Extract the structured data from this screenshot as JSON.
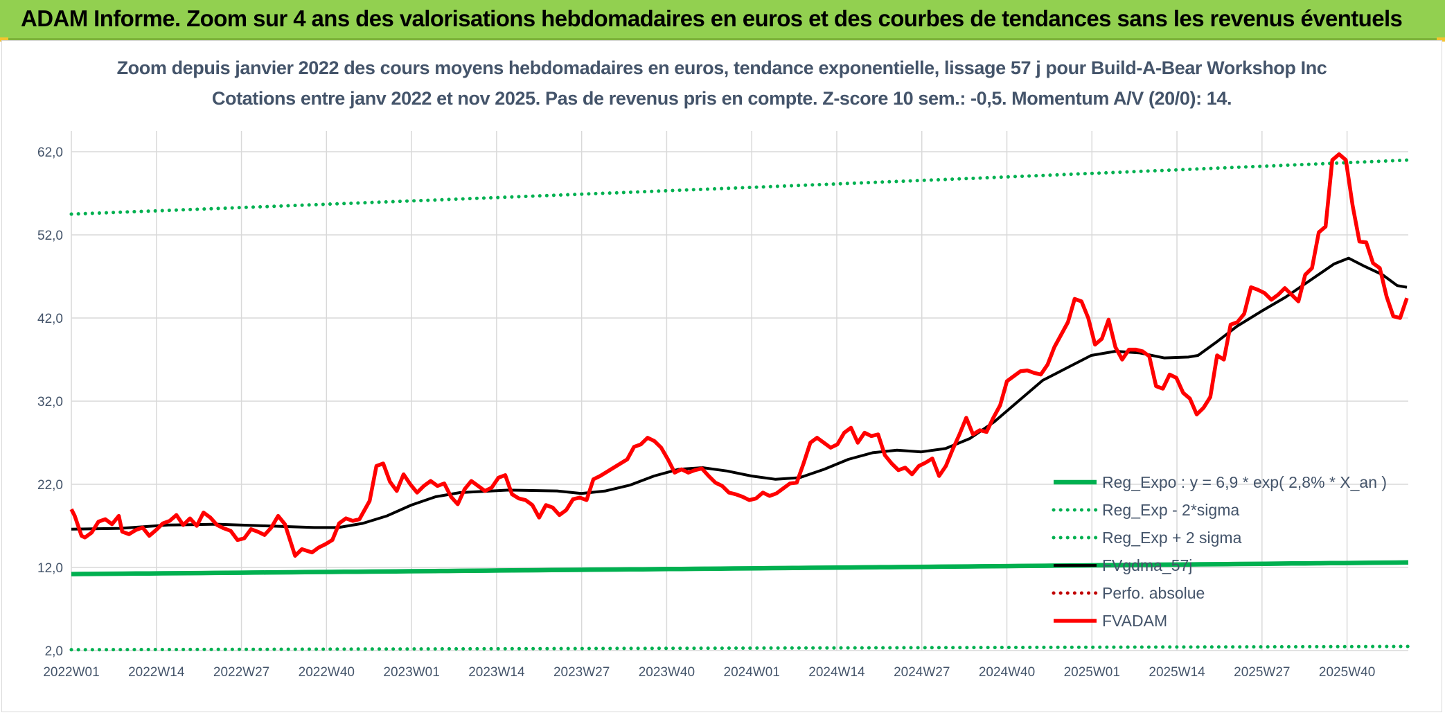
{
  "banner": {
    "text": "ADAM Informe. Zoom sur 4 ans des valorisations hebdomadaires en euros et des courbes de tendances sans les revenus éventuels"
  },
  "colors": {
    "banner_bg": "#92d050",
    "reg_expo": "#00b050",
    "sigma_lines": "#00b050",
    "fvgdma": "#000000",
    "perfo": "#c00000",
    "fvadam": "#ff0000",
    "grid": "#d9d9d9",
    "text": "#44546a"
  },
  "chart_data": {
    "type": "line",
    "title": [
      "Zoom depuis janvier 2022 des cours moyens hebdomadaires en euros, tendance exponentielle, lissage 57 j pour Build-A-Bear Workshop Inc",
      "Cotations entre janv 2022 et nov 2025. Pas de revenus pris en compte. Z-score 10 sem.: -0,5. Momentum A/V (20/0): 14."
    ],
    "xlabel": "",
    "ylabel": "",
    "ylim": [
      2,
      62
    ],
    "yticks": [
      "2,0",
      "12,0",
      "22,0",
      "32,0",
      "42,0",
      "52,0",
      "62,0"
    ],
    "ytick_values": [
      2,
      12,
      22,
      32,
      42,
      52,
      62
    ],
    "xticks": [
      "2022W01",
      "2022W14",
      "2022W27",
      "2022W40",
      "2023W01",
      "2023W14",
      "2023W27",
      "2023W40",
      "2024W01",
      "2024W14",
      "2024W27",
      "2024W40",
      "2025W01",
      "2025W14",
      "2025W27",
      "2025W40"
    ],
    "x_count": 206,
    "grid": true,
    "legend_position": "lower-right",
    "series": [
      {
        "name": "Reg_Expo : y = 6,9 * exp( 2,8% *  X_an )",
        "style": "solid",
        "color": "#00b050",
        "endpoints": [
          11.2,
          12.6
        ]
      },
      {
        "name": "Reg_Exp - 2*sigma",
        "style": "dotted",
        "color": "#00b050",
        "endpoints": [
          2.1,
          2.5
        ]
      },
      {
        "name": "Reg_Exp + 2 sigma",
        "style": "dotted",
        "color": "#00b050",
        "endpoints": [
          54.5,
          61.0
        ]
      },
      {
        "name": "FVgdma_57j",
        "style": "solid",
        "color": "#000000",
        "points": [
          [
            0,
            16.6
          ],
          [
            10,
            16.7
          ],
          [
            20,
            17.1
          ],
          [
            30,
            17.2
          ],
          [
            40,
            17.0
          ],
          [
            50,
            16.8
          ],
          [
            55,
            16.8
          ],
          [
            60,
            17.3
          ],
          [
            65,
            18.2
          ],
          [
            70,
            19.5
          ],
          [
            75,
            20.5
          ],
          [
            80,
            21.0
          ],
          [
            90,
            21.3
          ],
          [
            100,
            21.2
          ],
          [
            105,
            20.9
          ],
          [
            110,
            21.2
          ],
          [
            115,
            21.9
          ],
          [
            120,
            23.0
          ],
          [
            125,
            23.8
          ],
          [
            130,
            24.0
          ],
          [
            135,
            23.6
          ],
          [
            140,
            23.0
          ],
          [
            145,
            22.6
          ],
          [
            150,
            22.8
          ],
          [
            155,
            23.8
          ],
          [
            160,
            25.0
          ],
          [
            165,
            25.8
          ],
          [
            170,
            26.1
          ],
          [
            175,
            25.9
          ],
          [
            180,
            26.3
          ],
          [
            185,
            27.5
          ],
          [
            190,
            29.5
          ],
          [
            195,
            32.0
          ],
          [
            200,
            34.5
          ],
          [
            205,
            36.0
          ],
          [
            210,
            37.5
          ],
          [
            215,
            38.0
          ],
          [
            220,
            37.8
          ],
          [
            225,
            37.2
          ],
          [
            230,
            37.3
          ],
          [
            232,
            37.5
          ],
          [
            236,
            39.2
          ],
          [
            240,
            41.0
          ],
          [
            245,
            42.8
          ],
          [
            250,
            44.5
          ],
          [
            255,
            46.5
          ],
          [
            260,
            48.5
          ],
          [
            263,
            49.2
          ],
          [
            266,
            48.3
          ],
          [
            270,
            47.2
          ],
          [
            273,
            45.9
          ],
          [
            275,
            45.7
          ]
        ]
      },
      {
        "name": "Perfo. absolue",
        "style": "dotted",
        "color": "#c00000",
        "points": []
      },
      {
        "name": "FVADAM",
        "style": "solid",
        "color": "#ff0000",
        "points": [
          [
            0,
            19.0
          ],
          [
            1,
            18.2
          ],
          [
            3,
            15.8
          ],
          [
            4,
            15.6
          ],
          [
            6,
            16.2
          ],
          [
            8,
            17.5
          ],
          [
            10,
            17.8
          ],
          [
            12,
            17.2
          ],
          [
            14,
            18.2
          ],
          [
            15,
            16.3
          ],
          [
            17,
            16.0
          ],
          [
            19,
            16.5
          ],
          [
            21,
            16.8
          ],
          [
            23,
            15.8
          ],
          [
            25,
            16.5
          ],
          [
            27,
            17.3
          ],
          [
            29,
            17.6
          ],
          [
            31,
            18.3
          ],
          [
            33,
            17.1
          ],
          [
            35,
            17.9
          ],
          [
            37,
            17.0
          ],
          [
            39,
            18.6
          ],
          [
            41,
            18.0
          ],
          [
            43,
            17.1
          ],
          [
            45,
            16.7
          ],
          [
            47,
            16.4
          ],
          [
            49,
            15.3
          ],
          [
            51,
            15.5
          ],
          [
            53,
            16.6
          ],
          [
            55,
            16.3
          ],
          [
            57,
            15.9
          ],
          [
            59,
            16.8
          ],
          [
            61,
            18.2
          ],
          [
            63,
            17.2
          ],
          [
            66,
            13.4
          ],
          [
            68,
            14.2
          ],
          [
            71,
            13.8
          ],
          [
            73,
            14.4
          ],
          [
            75,
            14.8
          ],
          [
            77,
            15.3
          ],
          [
            79,
            17.3
          ],
          [
            81,
            17.9
          ],
          [
            83,
            17.6
          ],
          [
            85,
            17.8
          ],
          [
            88,
            20.0
          ],
          [
            90,
            24.2
          ],
          [
            92,
            24.5
          ],
          [
            94,
            22.3
          ],
          [
            96,
            21.2
          ],
          [
            98,
            23.2
          ],
          [
            100,
            22.0
          ],
          [
            102,
            21.0
          ],
          [
            104,
            21.8
          ],
          [
            106,
            22.4
          ],
          [
            108,
            21.8
          ],
          [
            110,
            22.1
          ],
          [
            112,
            20.5
          ],
          [
            114,
            19.6
          ],
          [
            116,
            21.4
          ],
          [
            118,
            22.4
          ],
          [
            120,
            21.8
          ],
          [
            122,
            21.2
          ],
          [
            124,
            21.6
          ],
          [
            126,
            22.8
          ],
          [
            128,
            23.1
          ],
          [
            130,
            20.8
          ],
          [
            132,
            20.3
          ],
          [
            134,
            20.1
          ],
          [
            136,
            19.5
          ],
          [
            138,
            18.0
          ],
          [
            140,
            19.5
          ],
          [
            142,
            19.2
          ],
          [
            144,
            18.3
          ],
          [
            146,
            18.9
          ],
          [
            148,
            20.2
          ],
          [
            150,
            20.4
          ],
          [
            152,
            20.1
          ],
          [
            154,
            22.6
          ],
          [
            156,
            23.0
          ],
          [
            158,
            23.5
          ],
          [
            160,
            24.0
          ],
          [
            162,
            24.5
          ],
          [
            164,
            25.0
          ],
          [
            166,
            26.5
          ],
          [
            168,
            26.8
          ],
          [
            170,
            27.6
          ],
          [
            172,
            27.2
          ],
          [
            174,
            26.4
          ],
          [
            176,
            25.0
          ],
          [
            178,
            23.4
          ],
          [
            180,
            23.8
          ],
          [
            182,
            23.4
          ],
          [
            184,
            23.7
          ],
          [
            186,
            23.9
          ],
          [
            188,
            23.0
          ],
          [
            190,
            22.2
          ],
          [
            192,
            21.8
          ],
          [
            194,
            21.0
          ],
          [
            196,
            20.8
          ],
          [
            198,
            20.5
          ],
          [
            200,
            20.1
          ],
          [
            202,
            20.3
          ],
          [
            204,
            21.0
          ],
          [
            206,
            20.6
          ],
          [
            208,
            20.9
          ],
          [
            210,
            21.5
          ],
          [
            212,
            22.1
          ],
          [
            214,
            22.2
          ],
          [
            216,
            24.5
          ],
          [
            218,
            27.0
          ],
          [
            220,
            27.6
          ],
          [
            222,
            27.0
          ],
          [
            224,
            26.4
          ],
          [
            226,
            26.8
          ],
          [
            228,
            28.2
          ],
          [
            230,
            28.8
          ],
          [
            232,
            27.0
          ],
          [
            234,
            28.2
          ],
          [
            236,
            27.8
          ],
          [
            238,
            28.0
          ],
          [
            240,
            25.5
          ],
          [
            242,
            24.5
          ],
          [
            244,
            23.7
          ],
          [
            246,
            24.0
          ],
          [
            248,
            23.2
          ],
          [
            250,
            24.2
          ],
          [
            252,
            24.6
          ],
          [
            254,
            25.1
          ],
          [
            256,
            23.0
          ],
          [
            258,
            24.2
          ],
          [
            260,
            26.2
          ],
          [
            262,
            28.0
          ],
          [
            264,
            30.0
          ],
          [
            266,
            28.0
          ],
          [
            268,
            28.5
          ],
          [
            270,
            28.3
          ],
          [
            272,
            30.0
          ],
          [
            274,
            31.5
          ],
          [
            276,
            34.4
          ],
          [
            278,
            35.0
          ],
          [
            280,
            35.6
          ],
          [
            282,
            35.7
          ],
          [
            284,
            35.4
          ],
          [
            286,
            35.2
          ],
          [
            288,
            36.4
          ],
          [
            290,
            38.5
          ],
          [
            292,
            40.0
          ],
          [
            294,
            41.5
          ],
          [
            296,
            44.3
          ],
          [
            298,
            44.0
          ],
          [
            300,
            42.0
          ],
          [
            302,
            38.8
          ],
          [
            304,
            39.5
          ],
          [
            306,
            41.8
          ],
          [
            308,
            38.5
          ],
          [
            310,
            37.0
          ],
          [
            312,
            38.2
          ],
          [
            314,
            38.2
          ],
          [
            316,
            38.0
          ],
          [
            318,
            37.4
          ],
          [
            320,
            33.8
          ],
          [
            322,
            33.5
          ],
          [
            324,
            35.2
          ],
          [
            326,
            34.8
          ],
          [
            328,
            33.0
          ],
          [
            330,
            32.3
          ],
          [
            332,
            30.4
          ],
          [
            334,
            31.2
          ],
          [
            336,
            32.5
          ],
          [
            338,
            37.5
          ],
          [
            340,
            37.0
          ],
          [
            342,
            41.2
          ],
          [
            344,
            41.5
          ],
          [
            346,
            42.5
          ],
          [
            348,
            45.7
          ],
          [
            350,
            45.4
          ],
          [
            352,
            45.0
          ],
          [
            354,
            44.2
          ],
          [
            356,
            44.8
          ],
          [
            358,
            45.6
          ],
          [
            360,
            44.8
          ],
          [
            362,
            44.0
          ],
          [
            364,
            47.2
          ],
          [
            366,
            48.0
          ],
          [
            368,
            52.3
          ],
          [
            370,
            53.0
          ],
          [
            372,
            61.0
          ],
          [
            374,
            61.7
          ],
          [
            376,
            61.0
          ],
          [
            378,
            55.5
          ],
          [
            380,
            51.2
          ],
          [
            382,
            51.1
          ],
          [
            384,
            48.6
          ],
          [
            386,
            48.0
          ],
          [
            388,
            44.6
          ],
          [
            390,
            42.2
          ],
          [
            392,
            42.0
          ],
          [
            394,
            44.4
          ]
        ]
      }
    ]
  }
}
